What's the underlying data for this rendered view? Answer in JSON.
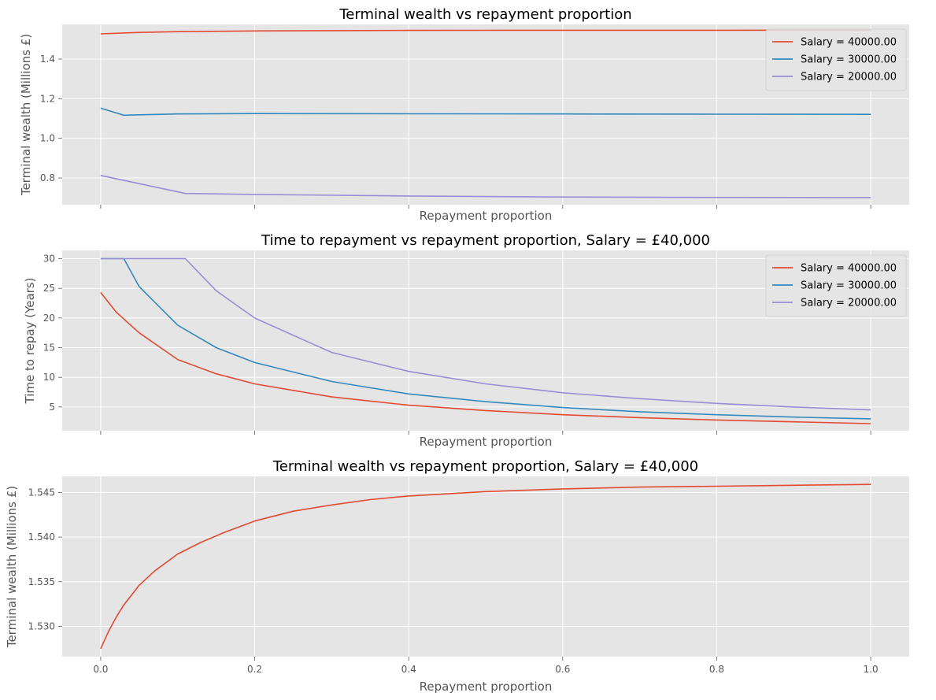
{
  "chart_data": [
    {
      "type": "line",
      "title": "Terminal wealth vs repayment proportion",
      "xlabel": "Repayment proportion",
      "ylabel": "Terminal wealth (Millions £)",
      "xlim": [
        -0.05,
        1.05
      ],
      "ylim": [
        0.665,
        1.575
      ],
      "xticks": [
        0.0,
        0.2,
        0.4,
        0.6,
        0.8,
        1.0
      ],
      "xtick_labels": [
        "",
        "",
        "",
        "",
        "",
        ""
      ],
      "yticks": [
        0.8,
        1.0,
        1.2,
        1.4
      ],
      "ytick_labels": [
        "0.8",
        "1.0",
        "1.2",
        "1.4"
      ],
      "grid": true,
      "legend": "top-right",
      "series": [
        {
          "name": "Salary = 40000.00",
          "color": "#e24a33",
          "x": [
            0.0,
            0.05,
            0.1,
            0.2,
            0.3,
            0.4,
            0.5,
            0.6,
            0.8,
            1.0
          ],
          "y": [
            1.5275,
            1.5345,
            1.5385,
            1.542,
            1.5437,
            1.5447,
            1.5451,
            1.5454,
            1.5457,
            1.5459
          ]
        },
        {
          "name": "Salary = 30000.00",
          "color": "#348abd",
          "x": [
            0.0,
            0.03,
            0.05,
            0.1,
            0.2,
            0.4,
            0.6,
            0.8,
            1.0
          ],
          "y": [
            1.152,
            1.117,
            1.119,
            1.123,
            1.125,
            1.124,
            1.123,
            1.122,
            1.121
          ]
        },
        {
          "name": "Salary = 20000.00",
          "color": "#988ed5",
          "x": [
            0.0,
            0.11,
            0.2,
            0.4,
            0.6,
            0.8,
            1.0
          ],
          "y": [
            0.813,
            0.722,
            0.717,
            0.709,
            0.704,
            0.702,
            0.701
          ]
        }
      ]
    },
    {
      "type": "line",
      "title": "Time to repayment vs repayment proportion, Salary = £40,000",
      "xlabel": "Repayment proportion",
      "ylabel": "Time to repay (Years)",
      "xlim": [
        -0.05,
        1.05
      ],
      "ylim": [
        1.0,
        31.4
      ],
      "xticks": [
        0.0,
        0.2,
        0.4,
        0.6,
        0.8,
        1.0
      ],
      "xtick_labels": [
        "",
        "",
        "",
        "",
        "",
        ""
      ],
      "yticks": [
        5,
        10,
        15,
        20,
        25,
        30
      ],
      "ytick_labels": [
        "5",
        "10",
        "15",
        "20",
        "25",
        "30"
      ],
      "grid": true,
      "legend": "top-right",
      "series": [
        {
          "name": "Salary = 40000.00",
          "color": "#e24a33",
          "x": [
            0.0,
            0.02,
            0.05,
            0.1,
            0.15,
            0.2,
            0.3,
            0.4,
            0.5,
            0.6,
            0.7,
            0.8,
            0.9,
            1.0
          ],
          "y": [
            24.3,
            21.0,
            17.5,
            13.0,
            10.6,
            8.9,
            6.7,
            5.3,
            4.4,
            3.7,
            3.2,
            2.8,
            2.5,
            2.2
          ]
        },
        {
          "name": "Salary = 30000.00",
          "color": "#348abd",
          "x": [
            0.0,
            0.03,
            0.05,
            0.1,
            0.15,
            0.2,
            0.3,
            0.4,
            0.5,
            0.6,
            0.7,
            0.8,
            0.9,
            1.0
          ],
          "y": [
            30.0,
            30.0,
            25.3,
            18.8,
            15.0,
            12.5,
            9.3,
            7.2,
            5.9,
            4.9,
            4.2,
            3.7,
            3.3,
            3.0
          ]
        },
        {
          "name": "Salary = 20000.00",
          "color": "#988ed5",
          "x": [
            0.0,
            0.11,
            0.15,
            0.2,
            0.3,
            0.4,
            0.5,
            0.6,
            0.7,
            0.8,
            0.9,
            1.0
          ],
          "y": [
            30.0,
            30.0,
            24.6,
            20.0,
            14.2,
            11.0,
            8.9,
            7.4,
            6.4,
            5.6,
            5.0,
            4.5
          ]
        }
      ]
    },
    {
      "type": "line",
      "title": "Terminal wealth vs repayment proportion, Salary = £40,000",
      "xlabel": "Repayment proportion",
      "ylabel": "Terminal wealth (Millions £)",
      "xlim": [
        -0.05,
        1.05
      ],
      "ylim": [
        1.5266,
        1.5468
      ],
      "xticks": [
        0.0,
        0.2,
        0.4,
        0.6,
        0.8,
        1.0
      ],
      "xtick_labels": [
        "0.0",
        "0.2",
        "0.4",
        "0.6",
        "0.8",
        "1.0"
      ],
      "yticks": [
        1.53,
        1.535,
        1.54,
        1.545
      ],
      "ytick_labels": [
        "1.530",
        "1.535",
        "1.540",
        "1.545"
      ],
      "grid": true,
      "legend": "none",
      "series": [
        {
          "color": "#e24a33",
          "x": [
            0.0,
            0.01,
            0.02,
            0.03,
            0.05,
            0.07,
            0.1,
            0.13,
            0.16,
            0.2,
            0.25,
            0.3,
            0.35,
            0.4,
            0.5,
            0.6,
            0.7,
            0.8,
            0.9,
            1.0
          ],
          "y": [
            1.5275,
            1.5294,
            1.531,
            1.5324,
            1.5346,
            1.5362,
            1.5381,
            1.5394,
            1.5405,
            1.5418,
            1.5429,
            1.5436,
            1.5442,
            1.5446,
            1.5451,
            1.5454,
            1.5456,
            1.5457,
            1.5458,
            1.5459
          ]
        }
      ]
    }
  ]
}
